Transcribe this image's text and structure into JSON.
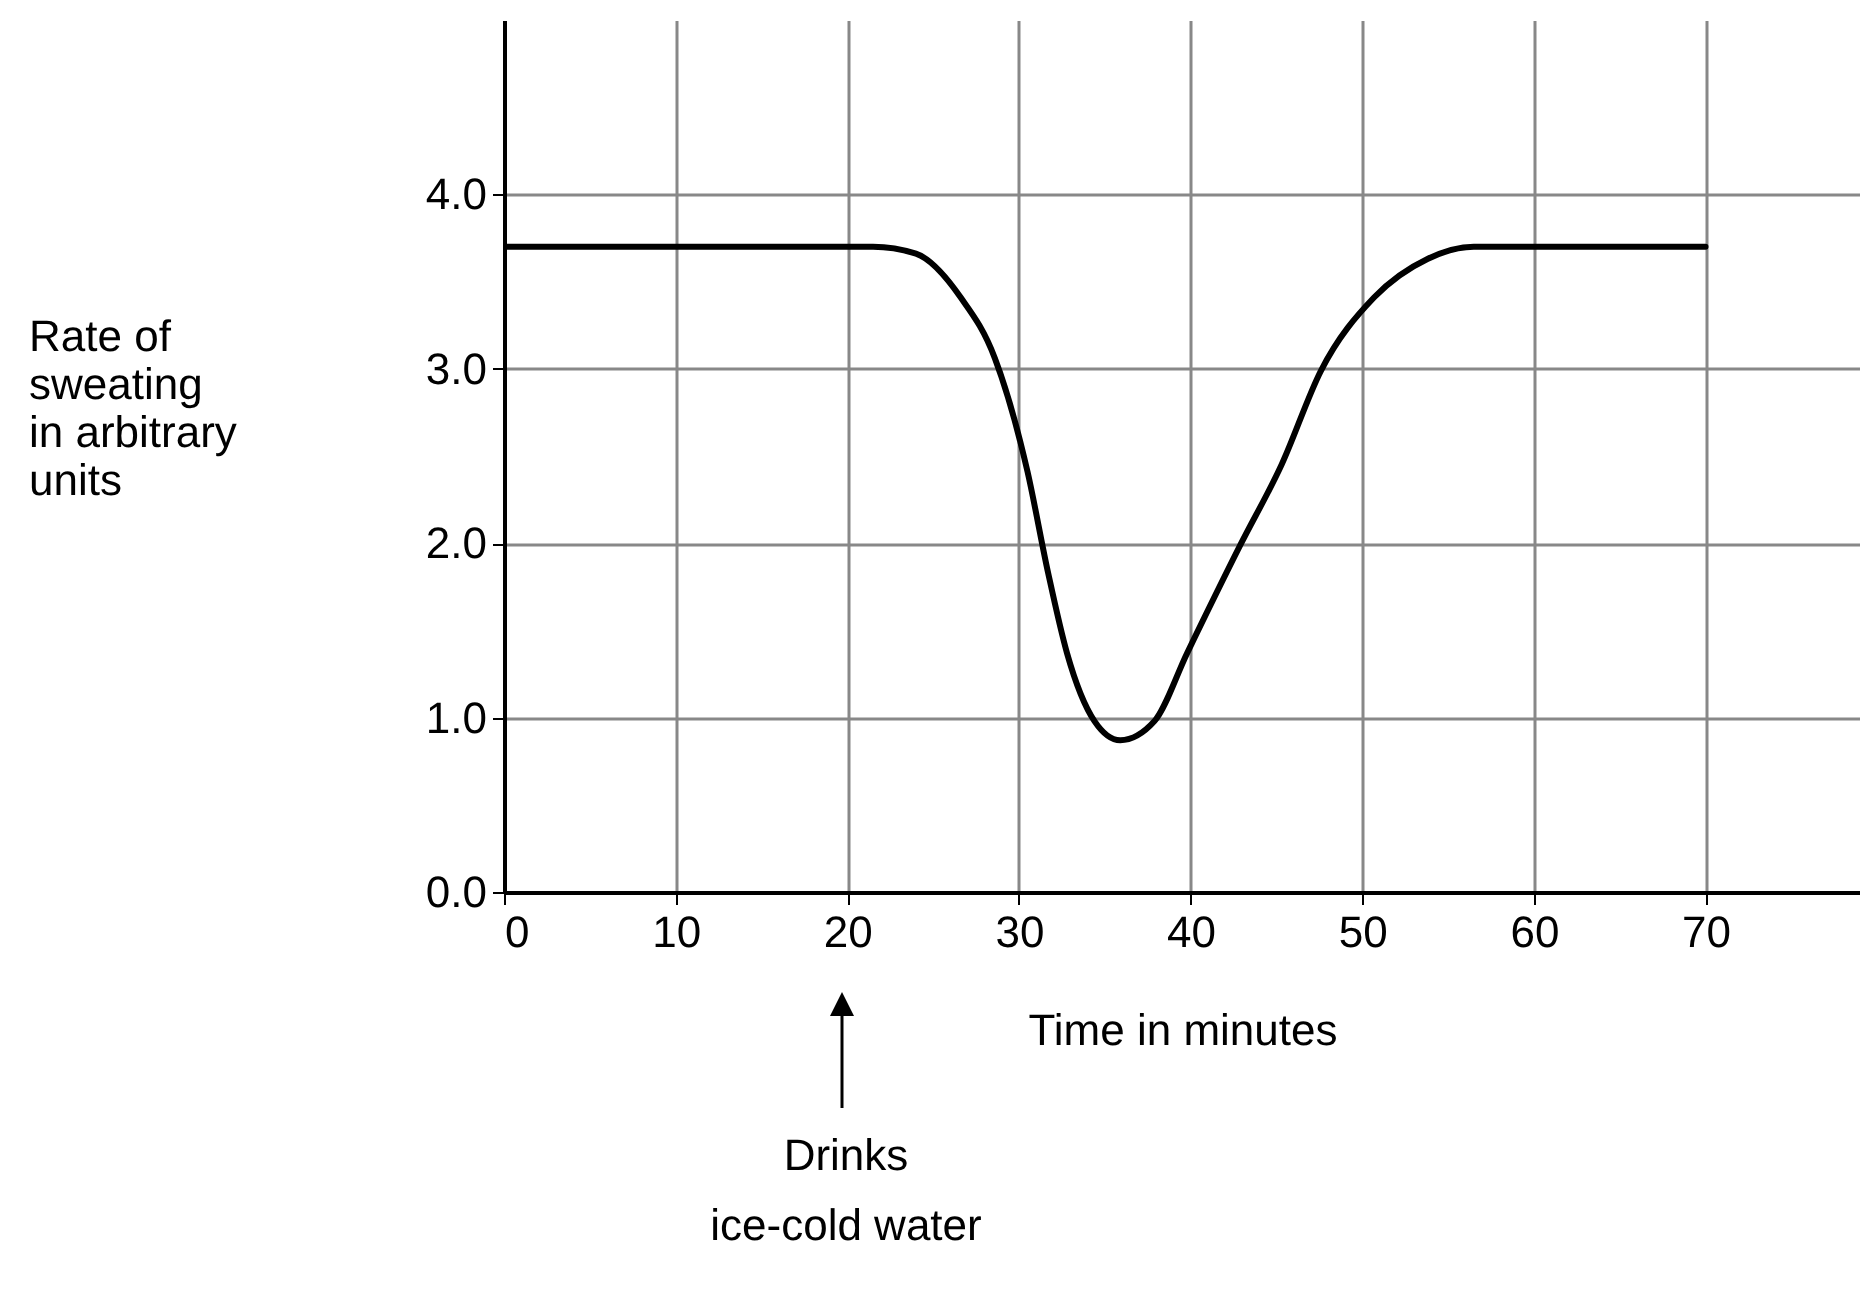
{
  "chart_data": {
    "type": "line",
    "xlabel": "Time in minutes",
    "ylabel": "Rate of\nsweating\nin arbitrary\nunits",
    "x": [
      0,
      21.5,
      24,
      26.6,
      28.6,
      30.5,
      31.7,
      32.8,
      34.4,
      35.9,
      37.9,
      39.8,
      42.9,
      45.3,
      47.6,
      50.7,
      53.8,
      56.5,
      70
    ],
    "series": [
      {
        "color": "#000000",
        "values": [
          3.7,
          3.7,
          3.66,
          3.41,
          3.06,
          2.41,
          1.83,
          1.37,
          0.98,
          0.87,
          0.98,
          1.37,
          1.99,
          2.45,
          2.99,
          3.41,
          3.63,
          3.7,
          3.7
        ]
      }
    ],
    "xlim": [
      0,
      79
    ],
    "ylim": [
      0,
      5
    ],
    "xticks": [
      0,
      10,
      20,
      30,
      40,
      50,
      60,
      70
    ],
    "yticks": [
      {
        "value": 0,
        "label": "0.0"
      },
      {
        "value": 1,
        "label": "1.0"
      },
      {
        "value": 2,
        "label": "2.0"
      },
      {
        "value": 3,
        "label": "3.0"
      },
      {
        "value": 4,
        "label": "4.0"
      }
    ],
    "grid": true,
    "marker": "none",
    "line_style": "solid",
    "annotations": [
      "Drinks\nice-cold water"
    ]
  }
}
